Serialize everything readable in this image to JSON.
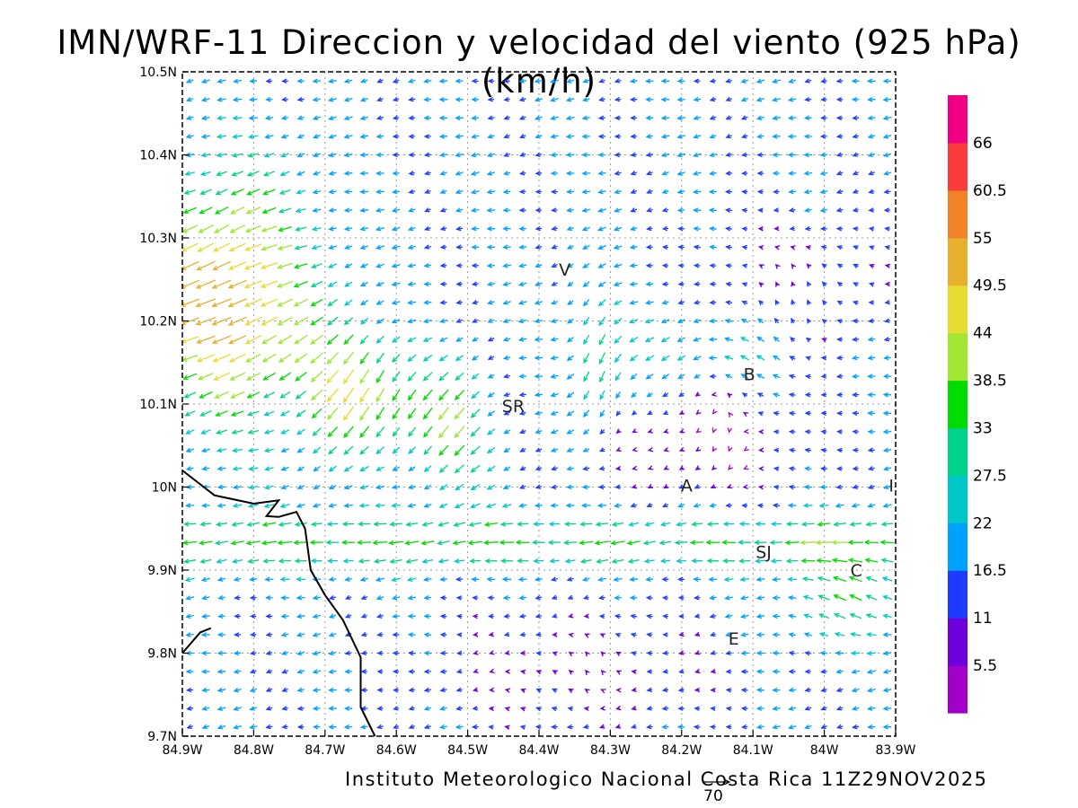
{
  "title": "IMN/WRF-11 Direccion y velocidad del viento (925 hPa)(km/h)",
  "credit": "Instituto Meteorologico Nacional Costa Rica 11Z29NOV2025",
  "reference_vector_label": "70",
  "axes": {
    "x_ticks": [
      "84.9W",
      "84.8W",
      "84.7W",
      "84.6W",
      "84.5W",
      "84.4W",
      "84.3W",
      "84.2W",
      "84.1W",
      "84W",
      "83.9W"
    ],
    "y_ticks": [
      "9.7N",
      "9.8N",
      "9.9N",
      "10N",
      "10.1N",
      "10.2N",
      "10.3N",
      "10.4N",
      "10.5N"
    ],
    "x_range": [
      -84.9,
      -83.9
    ],
    "y_range": [
      9.7,
      10.5
    ],
    "grid": true
  },
  "colorbar": {
    "labels": [
      "5.5",
      "11",
      "16.5",
      "22",
      "27.5",
      "33",
      "38.5",
      "44",
      "49.5",
      "55",
      "60.5",
      "66"
    ],
    "colors": [
      "#a000c8",
      "#6e00dc",
      "#1e3cff",
      "#00a0ff",
      "#00c8c8",
      "#00d28c",
      "#00dc00",
      "#a0e632",
      "#e6dc32",
      "#e6af2d",
      "#f08228",
      "#fa3c3c",
      "#f00082"
    ]
  },
  "places": [
    {
      "name": "V",
      "lon": -84.364,
      "lat": 10.262
    },
    {
      "name": "SR",
      "lon": -84.436,
      "lat": 10.098
    },
    {
      "name": "B",
      "lon": -84.105,
      "lat": 10.136
    },
    {
      "name": "A",
      "lon": -84.193,
      "lat": 10.002
    },
    {
      "name": "SJ",
      "lon": -84.085,
      "lat": 9.922
    },
    {
      "name": "C",
      "lon": -83.955,
      "lat": 9.9
    },
    {
      "name": "E",
      "lon": -84.127,
      "lat": 9.818
    },
    {
      "name": "I",
      "lon": -83.906,
      "lat": 10.002
    }
  ],
  "coastline": [
    [
      -84.9,
      10.02
    ],
    [
      -84.855,
      9.99
    ],
    [
      -84.8,
      9.98
    ],
    [
      -84.765,
      9.984
    ],
    [
      -84.782,
      9.965
    ],
    [
      -84.765,
      9.964
    ],
    [
      -84.74,
      9.97
    ],
    [
      -84.728,
      9.95
    ],
    [
      -84.72,
      9.9
    ],
    [
      -84.7,
      9.87
    ],
    [
      -84.675,
      9.84
    ],
    [
      -84.65,
      9.795
    ],
    [
      -84.65,
      9.735
    ],
    [
      -84.63,
      9.7
    ]
  ],
  "coastline_segment_2": [
    [
      -84.9,
      9.8
    ],
    [
      -84.875,
      9.825
    ],
    [
      -84.86,
      9.83
    ]
  ],
  "wind_field": {
    "units": "km/h",
    "reference_speed": 70,
    "lon_range": [
      -84.9,
      -83.9
    ],
    "lat_range": [
      9.7,
      10.5
    ],
    "columns": 45,
    "rows": 36
  }
}
